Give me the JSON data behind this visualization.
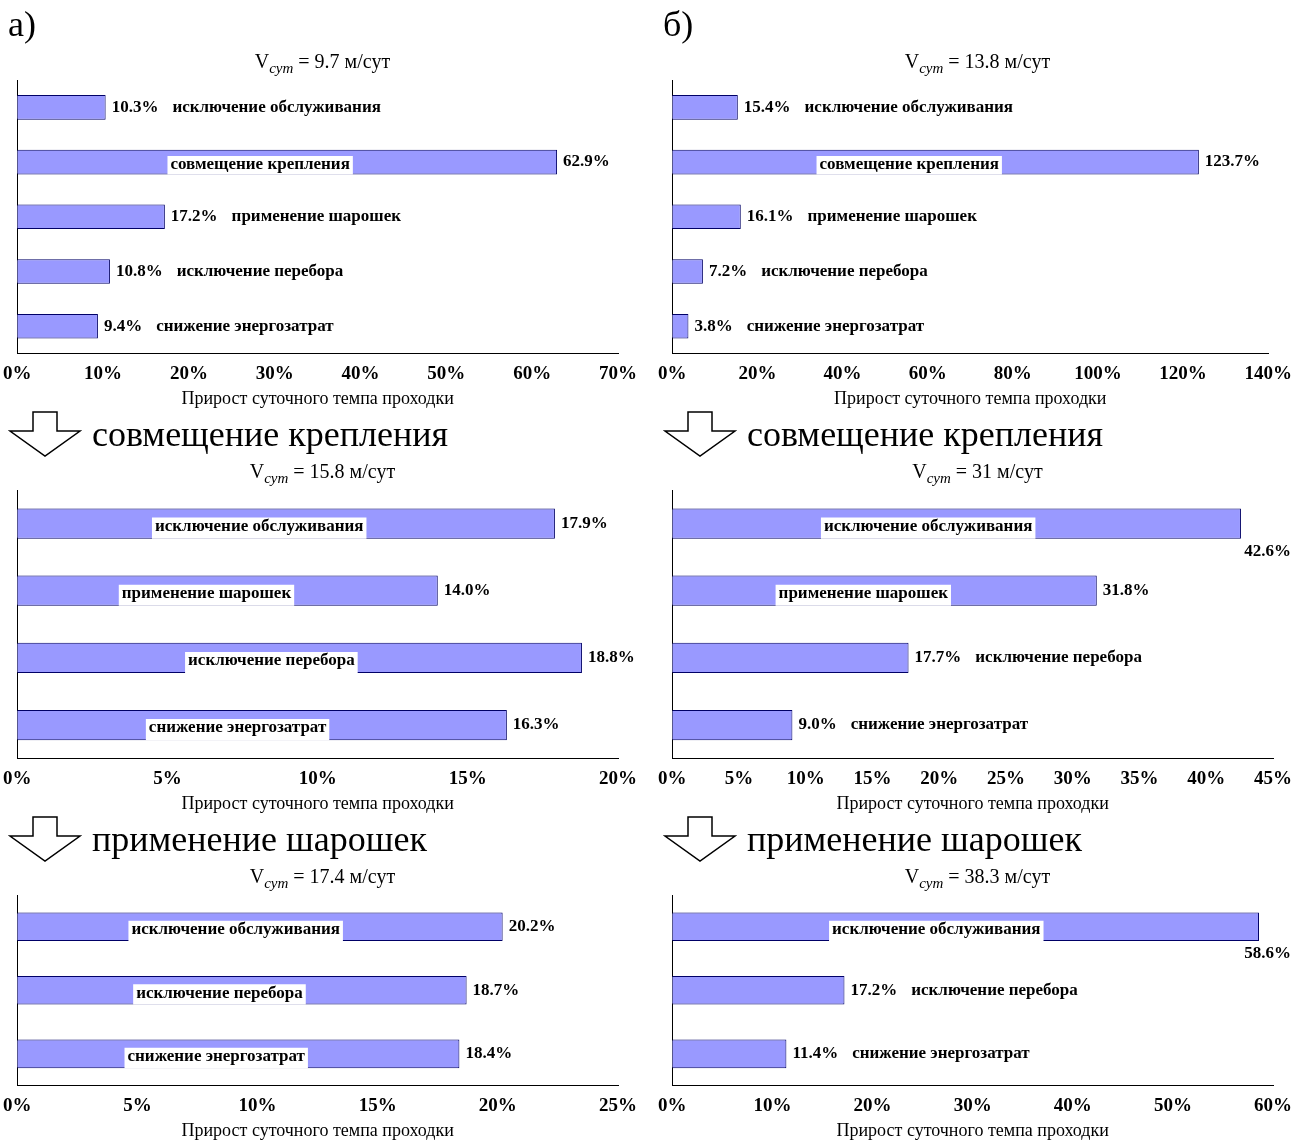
{
  "chart_data": [
    {
      "type": "bar",
      "orientation": "horizontal",
      "title": "V$_{сут}$ = 9.7  м/сут",
      "annotations": [
        "а)"
      ],
      "xlabel": "Прирост суточного темпа проходки",
      "categories": [
        "исключение обслуживания",
        "совмещение крепления",
        "применение шарошек",
        "исключение перебора",
        "снижение энергозатрат"
      ],
      "values": [
        10.3,
        62.9,
        17.2,
        10.8,
        9.4
      ],
      "value_labels": [
        "10.3%",
        "62.9%",
        "17.2%",
        "10.8%",
        "9.4%"
      ],
      "color": "#9999ff",
      "xlim": [
        0,
        70
      ],
      "xticks": [
        {
          "value": 0,
          "label": "0%"
        },
        {
          "value": 10,
          "label": "10%"
        },
        {
          "value": 20,
          "label": "20%"
        },
        {
          "value": 30,
          "label": "30%"
        },
        {
          "value": 40,
          "label": "40%"
        },
        {
          "value": 50,
          "label": "50%"
        },
        {
          "value": 60,
          "label": "60%"
        },
        {
          "value": 70,
          "label": "70%"
        }
      ],
      "grid": false,
      "legend": false,
      "tick_labels": "x"
    },
    {
      "type": "bar",
      "orientation": "horizontal",
      "title": "V$_{сут}$ = 13.8  м/сут",
      "annotations": [
        "б)"
      ],
      "xlabel": "Прирост суточного темпа проходки",
      "categories": [
        "исключение обслуживания",
        "совмещение крепления",
        "применение шарошек",
        "исключение перебора",
        "снижение энергозатрат"
      ],
      "values": [
        15.4,
        123.7,
        16.1,
        7.2,
        3.8
      ],
      "value_labels": [
        "15.4%",
        "123.7%",
        "16.1%",
        "7.2%",
        "3.8%"
      ],
      "color": "#9999ff",
      "xlim": [
        0,
        140
      ],
      "xticks": [
        {
          "value": 0,
          "label": "0%"
        },
        {
          "value": 20,
          "label": "20%"
        },
        {
          "value": 40,
          "label": "40%"
        },
        {
          "value": 60,
          "label": "60%"
        },
        {
          "value": 80,
          "label": "80%"
        },
        {
          "value": 100,
          "label": "100%"
        },
        {
          "value": 120,
          "label": "120%"
        },
        {
          "value": 140,
          "label": "140%"
        }
      ],
      "grid": false,
      "legend": false,
      "tick_labels": "x"
    },
    {
      "type": "bar",
      "orientation": "horizontal",
      "title": "V$_{сут}$ = 15.8  м/сут",
      "annotations": [
        "совмещение крепления"
      ],
      "xlabel": "Прирост суточного темпа проходки",
      "categories": [
        "исключение обслуживания",
        "применение шарошек",
        "исключение перебора",
        "снижение энергозатрат"
      ],
      "values": [
        17.9,
        14.0,
        18.8,
        16.3
      ],
      "value_labels": [
        "17.9%",
        "14.0%",
        "18.8%",
        "16.3%"
      ],
      "color": "#9999ff",
      "xlim": [
        0,
        20
      ],
      "xticks": [
        {
          "value": 0,
          "label": "0%"
        },
        {
          "value": 5,
          "label": "5%"
        },
        {
          "value": 10,
          "label": "10%"
        },
        {
          "value": 15,
          "label": "15%"
        },
        {
          "value": 20,
          "label": "20%"
        }
      ],
      "grid": false,
      "legend": false,
      "tick_labels": "x"
    },
    {
      "type": "bar",
      "orientation": "horizontal",
      "title": "V$_{сут}$ = 31  м/сут",
      "annotations": [
        "совмещение крепления"
      ],
      "xlabel": "Прирост суточного темпа проходки",
      "categories": [
        "исключение обслуживания",
        "применение шарошек",
        "исключение перебора",
        "снижение энергозатрат"
      ],
      "values": [
        42.6,
        31.8,
        17.7,
        9.0
      ],
      "value_labels": [
        "42.6%",
        "31.8%",
        "17.7%",
        "9.0%"
      ],
      "color": "#9999ff",
      "xlim": [
        0,
        45
      ],
      "xticks": [
        {
          "value": 0,
          "label": "0%"
        },
        {
          "value": 5,
          "label": "5%"
        },
        {
          "value": 10,
          "label": "10%"
        },
        {
          "value": 15,
          "label": "15%"
        },
        {
          "value": 20,
          "label": "20%"
        },
        {
          "value": 25,
          "label": "25%"
        },
        {
          "value": 30,
          "label": "30%"
        },
        {
          "value": 35,
          "label": "35%"
        },
        {
          "value": 40,
          "label": "40%"
        },
        {
          "value": 45,
          "label": "45%"
        }
      ],
      "grid": false,
      "legend": false,
      "tick_labels": "x"
    },
    {
      "type": "bar",
      "orientation": "horizontal",
      "title": "V$_{сут}$ = 17.4  м/сут",
      "annotations": [
        "применение шарошек"
      ],
      "xlabel": "Прирост суточного темпа проходки",
      "categories": [
        "исключение обслуживания",
        "исключение перебора",
        "снижение энергозатрат"
      ],
      "values": [
        20.2,
        18.7,
        18.4
      ],
      "value_labels": [
        "20.2%",
        "18.7%",
        "18.4%"
      ],
      "color": "#9999ff",
      "xlim": [
        0,
        25
      ],
      "xticks": [
        {
          "value": 0,
          "label": "0%"
        },
        {
          "value": 5,
          "label": "5%"
        },
        {
          "value": 10,
          "label": "10%"
        },
        {
          "value": 15,
          "label": "15%"
        },
        {
          "value": 20,
          "label": "20%"
        },
        {
          "value": 25,
          "label": "25%"
        }
      ],
      "grid": false,
      "legend": false,
      "tick_labels": "x"
    },
    {
      "type": "bar",
      "orientation": "horizontal",
      "title": "V$_{сут}$ = 38.3  м/сут",
      "annotations": [
        "применение шарошек"
      ],
      "xlabel": "Прирост суточного темпа проходки",
      "categories": [
        "исключение обслуживания",
        "исключение перебора",
        "снижение энергозатрат"
      ],
      "values": [
        58.6,
        17.2,
        11.4
      ],
      "value_labels": [
        "58.6%",
        "17.2%",
        "11.4%"
      ],
      "color": "#9999ff",
      "xlim": [
        0,
        60
      ],
      "xticks": [
        {
          "value": 0,
          "label": "0%"
        },
        {
          "value": 10,
          "label": "10%"
        },
        {
          "value": 20,
          "label": "20%"
        },
        {
          "value": 30,
          "label": "30%"
        },
        {
          "value": 40,
          "label": "40%"
        },
        {
          "value": 50,
          "label": "50%"
        },
        {
          "value": 60,
          "label": "60%"
        }
      ],
      "grid": false,
      "legend": false,
      "tick_labels": "x"
    }
  ]
}
